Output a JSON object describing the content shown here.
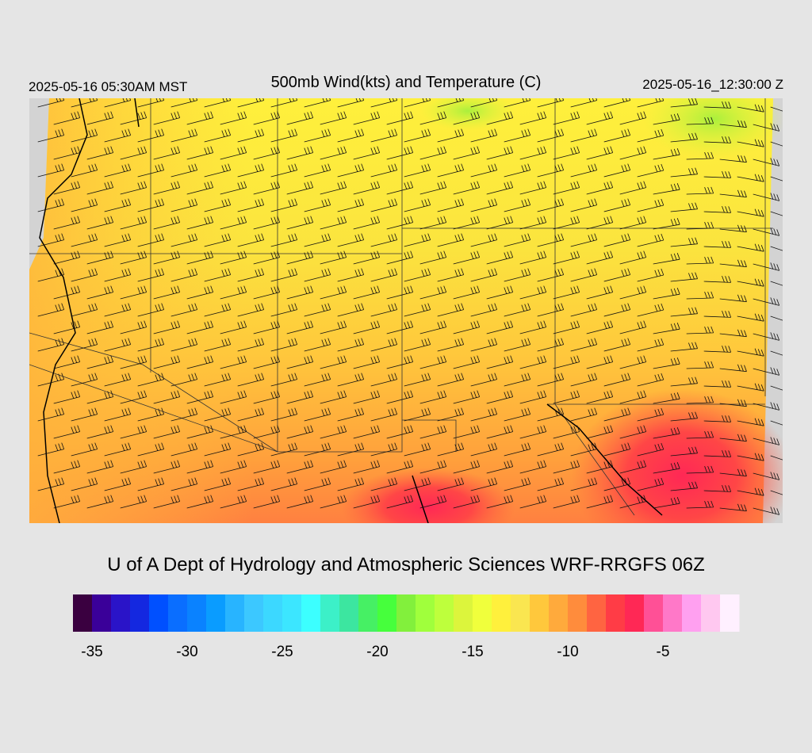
{
  "header": {
    "left": "2025-05-16 05:30AM MST",
    "title": "500mb Wind(kts) and Temperature (C)",
    "right": "2025-05-16_12:30:00 Z"
  },
  "footer": "U of A Dept of Hydrology and Atmospheric Sciences WRF-RRGFS 06Z",
  "colorbar": {
    "vmin": -36,
    "vmax": -1,
    "colors": [
      "#3a0040",
      "#3a0099",
      "#2a14c8",
      "#1428e0",
      "#0050ff",
      "#0a6eff",
      "#0a82ff",
      "#0a9cff",
      "#28b4ff",
      "#3cc8ff",
      "#3cd8ff",
      "#3ce6ff",
      "#3cffff",
      "#3cf0c8",
      "#3ce6a0",
      "#46f064",
      "#46ff3c",
      "#82f03c",
      "#a0ff3c",
      "#beff3c",
      "#dcf53c",
      "#f0ff3c",
      "#fff03c",
      "#fae650",
      "#ffc83c",
      "#ffaa3c",
      "#ff8c3c",
      "#ff6441",
      "#ff3c46",
      "#ff2855",
      "#ff5096",
      "#ff78c8",
      "#ffa0f0",
      "#ffc8f0",
      "#fff0ff"
    ],
    "ticks": [
      -35,
      -30,
      -25,
      -20,
      -15,
      -10,
      -5
    ]
  }
}
